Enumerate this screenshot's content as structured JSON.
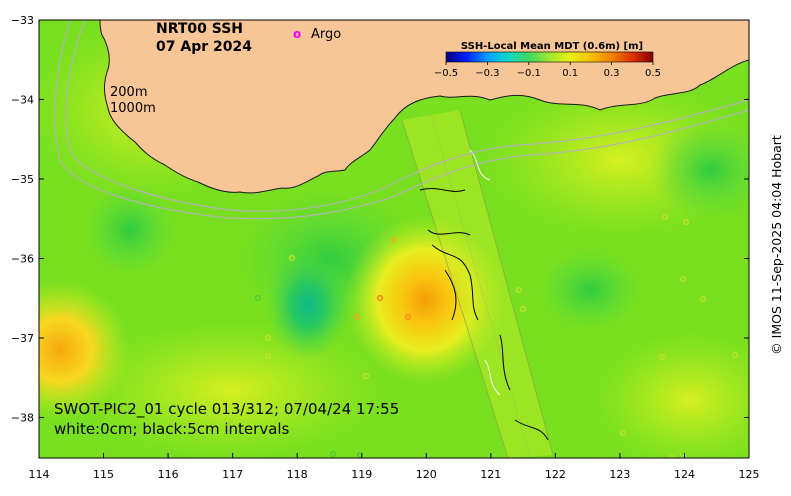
{
  "map": {
    "title_line1": "NRT00 SSH",
    "title_line2": "07 Apr 2024",
    "argo_marker": "o",
    "argo_label": "Argo",
    "isobath_200": "200m",
    "isobath_1000": "1000m",
    "swath_line1": "SWOT-PIC2_01 cycle 013/312; 07/04/24 17:55",
    "swath_line2": "white:0cm; black:5cm intervals",
    "credit": "© IMOS 11-Sep-2025 04:04 Hobart",
    "lon_ticks": [
      "114",
      "115",
      "116",
      "117",
      "118",
      "119",
      "120",
      "121",
      "122",
      "123",
      "124",
      "125"
    ],
    "lat_ticks": [
      "−33",
      "−34",
      "−35",
      "−36",
      "−37",
      "−38"
    ],
    "colors": {
      "land": "#f8c696",
      "argo": "#ff00ff",
      "warm_core": "#f7a40a",
      "field": "#6fe01c"
    }
  },
  "colorbar": {
    "title": "SSH-Local Mean MDT (0.6m) [m]",
    "ticks": [
      "−0.5",
      "−0.3",
      "−0.1",
      "0.1",
      "0.3",
      "0.5"
    ],
    "stops": [
      "#00007f",
      "#0020ff",
      "#00a0ff",
      "#10d8c8",
      "#40d860",
      "#a0e830",
      "#e8f010",
      "#f8c000",
      "#f08000",
      "#e03000",
      "#800000"
    ]
  }
}
